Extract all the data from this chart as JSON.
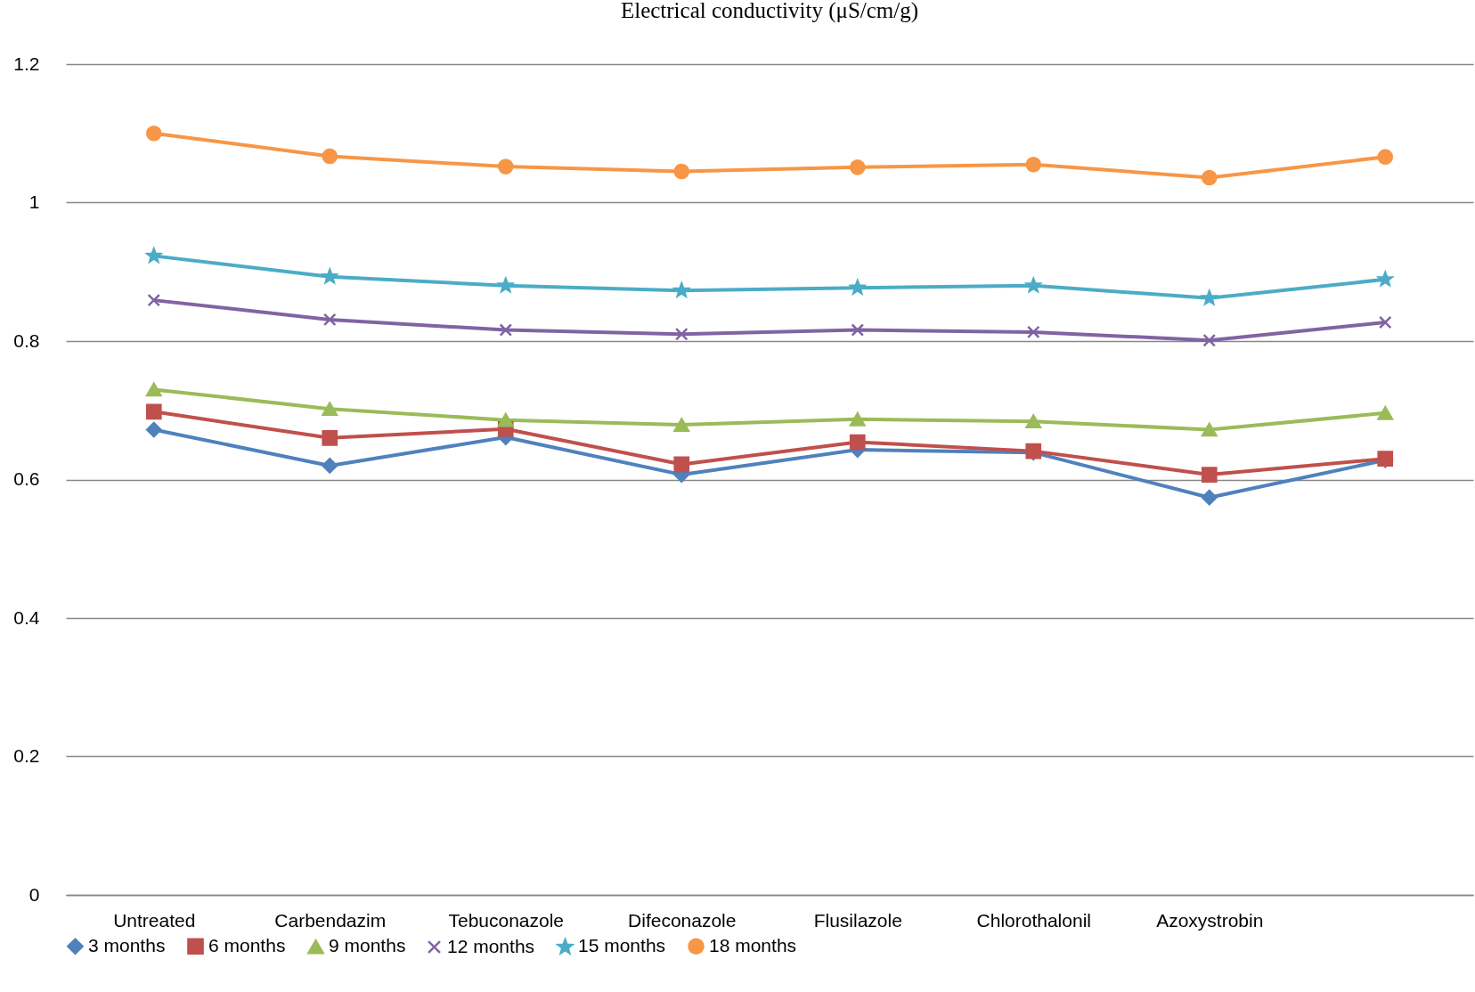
{
  "chart_data": {
    "type": "line",
    "title": "Electrical conductivity (μS/cm/g)",
    "categories": [
      "Untreated",
      "Carbendazim",
      "Tebuconazole",
      "Difeconazole",
      "Flusilazole",
      "Chlorothalonil",
      "Azoxystrobin",
      null
    ],
    "series": [
      {
        "name": "3 months",
        "color": "#4f81bd",
        "marker": "diamond",
        "values": [
          0.672,
          0.62,
          0.661,
          0.607,
          0.643,
          0.639,
          0.574,
          0.628
        ]
      },
      {
        "name": "6 months",
        "color": "#c0504d",
        "marker": "square",
        "values": [
          0.698,
          0.66,
          0.673,
          0.622,
          0.654,
          0.641,
          0.607,
          0.63
        ]
      },
      {
        "name": "9 months",
        "color": "#9bbb59",
        "marker": "triangle",
        "values": [
          0.73,
          0.702,
          0.686,
          0.679,
          0.687,
          0.684,
          0.672,
          0.696
        ]
      },
      {
        "name": "12 months",
        "color": "#8064a2",
        "marker": "cross",
        "values": [
          0.859,
          0.831,
          0.816,
          0.81,
          0.816,
          0.813,
          0.801,
          0.827
        ]
      },
      {
        "name": "15 months",
        "color": "#4bacc6",
        "marker": "star",
        "values": [
          0.923,
          0.893,
          0.88,
          0.873,
          0.877,
          0.88,
          0.862,
          0.889
        ]
      },
      {
        "name": "18 months",
        "color": "#f79646",
        "marker": "circle",
        "values": [
          1.1,
          1.067,
          1.052,
          1.045,
          1.051,
          1.055,
          1.036,
          1.066
        ]
      }
    ],
    "ylim": [
      0,
      1.2
    ],
    "yticks": [
      0,
      0.2,
      0.4,
      0.6,
      0.8,
      1,
      1.2
    ],
    "grid": "y",
    "legend": "bottom",
    "line_style": "solid"
  }
}
